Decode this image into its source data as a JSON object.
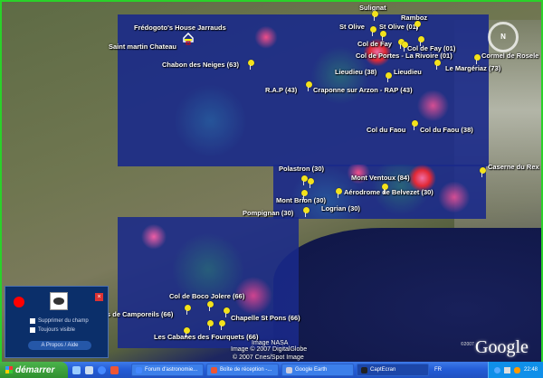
{
  "map": {
    "placemarks": [
      "Sulignat",
      "Ramboz",
      "St Olive",
      "St Olive (01)",
      "Frédogoto's House Jarrauds",
      "Saint martin Chateau",
      "Col de Fay",
      "Col de Fay (01)",
      "Col de Portes - La Rivoire (01)",
      "Cormel de Rosele",
      "Chabon des Neiges (63)",
      "Le Margériaz (73)",
      "Lieudieu (38)",
      "Lieudieu",
      "R.A.P (43)",
      "Craponne sur Arzon - RAP (43)",
      "Col du Faou",
      "Col du Faou (38)",
      "Caserne du Rex",
      "Polastron (30)",
      "Mont Ventoux (84)",
      "Aérodrome de Belvezet (30)",
      "Mont Brion (30)",
      "Logrian (30)",
      "Pompignan (30)",
      "Col de Boco Jolere (66)",
      "s de Camporeils (66)",
      "Chapelle St Pons (66)",
      "Les Cabanes des Fourquets (66)"
    ],
    "credits": [
      "Image NASA",
      "Image © 2007 DigitalGlobe",
      "© 2007 Cnes/Spot Image"
    ],
    "google_copyright": "©2007",
    "google_logo": "Google",
    "compass_north": "N"
  },
  "panel": {
    "checkbox1": "Supprimer du champ",
    "checkbox2": "Toujours visible",
    "help_button": "A Propos / Aide",
    "close": "×"
  },
  "taskbar": {
    "start": "démarrer",
    "tasks": [
      "Forum d'astronomie...",
      "Boîte de réception -...",
      "Google Earth",
      "CaptEcran"
    ],
    "lang": "FR",
    "time": "22:48"
  }
}
